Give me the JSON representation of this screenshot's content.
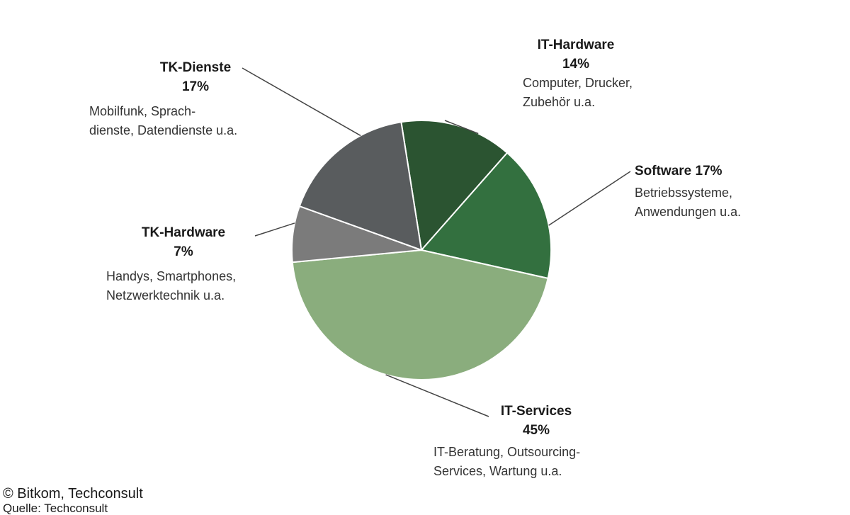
{
  "chart_data": {
    "type": "pie",
    "title": "",
    "slices": [
      {
        "name": "IT-Hardware",
        "value": 14,
        "pct_label": "14%",
        "desc": [
          "Computer, Drucker,",
          "Zubehör u.a."
        ],
        "color": "#2b5431"
      },
      {
        "name": "Software",
        "value": 17,
        "pct_label": "17%",
        "desc": [
          "Betriebssysteme,",
          "Anwendungen u.a."
        ],
        "color": "#33703f"
      },
      {
        "name": "IT-Services",
        "value": 45,
        "pct_label": "45%",
        "desc": [
          "IT-Beratung, Outsourcing-",
          "Services, Wartung u.a."
        ],
        "color": "#8aad7d"
      },
      {
        "name": "TK-Hardware",
        "value": 7,
        "pct_label": "7%",
        "desc": [
          "Handys, Smartphones,",
          "Netzwerktechnik u.a."
        ],
        "color": "#7b7b7b"
      },
      {
        "name": "TK-Dienste",
        "value": 17,
        "pct_label": "17%",
        "desc": [
          "Mobilfunk, Sprach-",
          "dienste, Datendienste u.a."
        ],
        "color": "#595c5e"
      }
    ]
  },
  "credit": "© Bitkom, Techconsult",
  "source": "Quelle: Techconsult"
}
